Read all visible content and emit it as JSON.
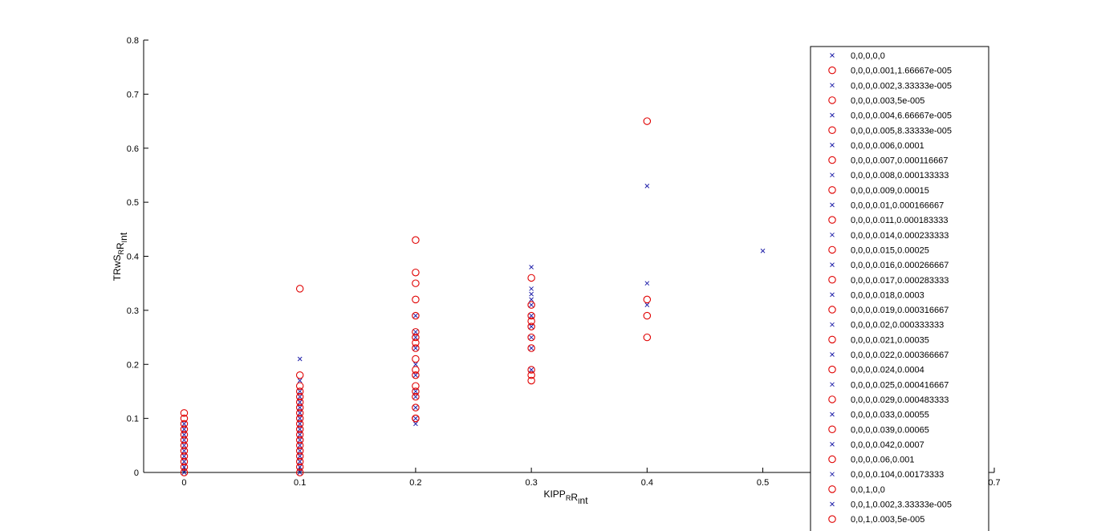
{
  "chart_data": {
    "type": "scatter",
    "xlabel": "KIPP_R R_I nt",
    "ylabel": "TRwS_R R_I nt",
    "xlim": [
      -0.035,
      0.7
    ],
    "ylim": [
      0,
      0.8
    ],
    "x_ticks": [
      "0",
      "0.1",
      "0.2",
      "0.3",
      "0.4",
      "0.5",
      "0.7"
    ],
    "y_ticks": [
      "0",
      "0.1",
      "0.2",
      "0.3",
      "0.4",
      "0.5",
      "0.6",
      "0.7",
      "0.8"
    ],
    "grid": false,
    "legend_position": "top-right",
    "colors": {
      "cross": "#2222aa",
      "circle": "#e00000"
    },
    "series": [
      {
        "marker": "x",
        "color": "#2222aa",
        "x": [
          0,
          0,
          0,
          0,
          0,
          0,
          0,
          0,
          0,
          0,
          0.1,
          0.1,
          0.1,
          0.1,
          0.1,
          0.1,
          0.1,
          0.1,
          0.1,
          0.1,
          0.1,
          0.1,
          0.1,
          0.1,
          0.1,
          0.1,
          0.1,
          0.1,
          0.2,
          0.2,
          0.2,
          0.2,
          0.2,
          0.2,
          0.2,
          0.2,
          0.2,
          0.2,
          0.2,
          0.3,
          0.3,
          0.3,
          0.3,
          0.3,
          0.3,
          0.3,
          0.3,
          0.3,
          0.3,
          0.4,
          0.4,
          0.4,
          0.5
        ],
        "y": [
          0,
          0.01,
          0.02,
          0.03,
          0.04,
          0.05,
          0.06,
          0.07,
          0.08,
          0.09,
          0,
          0.01,
          0.02,
          0.03,
          0.04,
          0.05,
          0.06,
          0.07,
          0.08,
          0.09,
          0.1,
          0.11,
          0.12,
          0.13,
          0.14,
          0.15,
          0.17,
          0.21,
          0.09,
          0.1,
          0.12,
          0.14,
          0.15,
          0.18,
          0.2,
          0.23,
          0.25,
          0.26,
          0.29,
          0.19,
          0.23,
          0.25,
          0.27,
          0.29,
          0.31,
          0.32,
          0.33,
          0.34,
          0.38,
          0.31,
          0.35,
          0.53,
          0.41
        ]
      },
      {
        "marker": "o",
        "color": "#e00000",
        "x": [
          0,
          0,
          0,
          0,
          0,
          0,
          0,
          0,
          0,
          0,
          0,
          0,
          0.1,
          0.1,
          0.1,
          0.1,
          0.1,
          0.1,
          0.1,
          0.1,
          0.1,
          0.1,
          0.1,
          0.1,
          0.1,
          0.1,
          0.1,
          0.1,
          0.1,
          0.1,
          0.1,
          0.2,
          0.2,
          0.2,
          0.2,
          0.2,
          0.2,
          0.2,
          0.2,
          0.2,
          0.2,
          0.2,
          0.2,
          0.2,
          0.2,
          0.2,
          0.2,
          0.2,
          0.2,
          0.3,
          0.3,
          0.3,
          0.3,
          0.3,
          0.3,
          0.3,
          0.3,
          0.3,
          0.3,
          0.4,
          0.4,
          0.4,
          0.4
        ],
        "y": [
          0,
          0.01,
          0.02,
          0.03,
          0.04,
          0.05,
          0.06,
          0.07,
          0.08,
          0.09,
          0.1,
          0.11,
          0,
          0.01,
          0.02,
          0.03,
          0.04,
          0.05,
          0.06,
          0.07,
          0.08,
          0.09,
          0.1,
          0.11,
          0.12,
          0.13,
          0.14,
          0.15,
          0.16,
          0.18,
          0.34,
          0.1,
          0.12,
          0.14,
          0.15,
          0.16,
          0.18,
          0.19,
          0.21,
          0.23,
          0.24,
          0.25,
          0.26,
          0.29,
          0.32,
          0.35,
          0.37,
          0.43,
          0.1,
          0.17,
          0.18,
          0.19,
          0.23,
          0.27,
          0.28,
          0.29,
          0.31,
          0.36,
          0.25,
          0.25,
          0.29,
          0.32,
          0.65
        ]
      }
    ],
    "legend": [
      {
        "label": "0,0,0,0,0",
        "marker": "x"
      },
      {
        "label": "0,0,0,0.001,1.66667e-005",
        "marker": "o"
      },
      {
        "label": "0,0,0,0.002,3.33333e-005",
        "marker": "x"
      },
      {
        "label": "0,0,0,0.003,5e-005",
        "marker": "o"
      },
      {
        "label": "0,0,0,0.004,6.66667e-005",
        "marker": "x"
      },
      {
        "label": "0,0,0,0.005,8.33333e-005",
        "marker": "o"
      },
      {
        "label": "0,0,0,0.006,0.0001",
        "marker": "x"
      },
      {
        "label": "0,0,0,0.007,0.000116667",
        "marker": "o"
      },
      {
        "label": "0,0,0,0.008,0.000133333",
        "marker": "x"
      },
      {
        "label": "0,0,0,0.009,0.00015",
        "marker": "o"
      },
      {
        "label": "0,0,0,0.01,0.000166667",
        "marker": "x"
      },
      {
        "label": "0,0,0,0.011,0.000183333",
        "marker": "o"
      },
      {
        "label": "0,0,0,0.014,0.000233333",
        "marker": "x"
      },
      {
        "label": "0,0,0,0.015,0.00025",
        "marker": "o"
      },
      {
        "label": "0,0,0,0.016,0.000266667",
        "marker": "x"
      },
      {
        "label": "0,0,0,0.017,0.000283333",
        "marker": "o"
      },
      {
        "label": "0,0,0,0.018,0.0003",
        "marker": "x"
      },
      {
        "label": "0,0,0,0.019,0.000316667",
        "marker": "o"
      },
      {
        "label": "0,0,0,0.02,0.000333333",
        "marker": "x"
      },
      {
        "label": "0,0,0,0.021,0.00035",
        "marker": "o"
      },
      {
        "label": "0,0,0,0.022,0.000366667",
        "marker": "x"
      },
      {
        "label": "0,0,0,0.024,0.0004",
        "marker": "o"
      },
      {
        "label": "0,0,0,0.025,0.000416667",
        "marker": "x"
      },
      {
        "label": "0,0,0,0.029,0.000483333",
        "marker": "o"
      },
      {
        "label": "0,0,0,0.033,0.00055",
        "marker": "x"
      },
      {
        "label": "0,0,0,0.039,0.00065",
        "marker": "o"
      },
      {
        "label": "0,0,0,0.042,0.0007",
        "marker": "x"
      },
      {
        "label": "0,0,0,0.06,0.001",
        "marker": "o"
      },
      {
        "label": "0,0,0,0.104,0.00173333",
        "marker": "x"
      },
      {
        "label": "0,0,1,0,0",
        "marker": "o"
      },
      {
        "label": "0,0,1,0.002,3.33333e-005",
        "marker": "x"
      },
      {
        "label": "0,0,1,0.003,5e-005",
        "marker": "o"
      }
    ]
  }
}
